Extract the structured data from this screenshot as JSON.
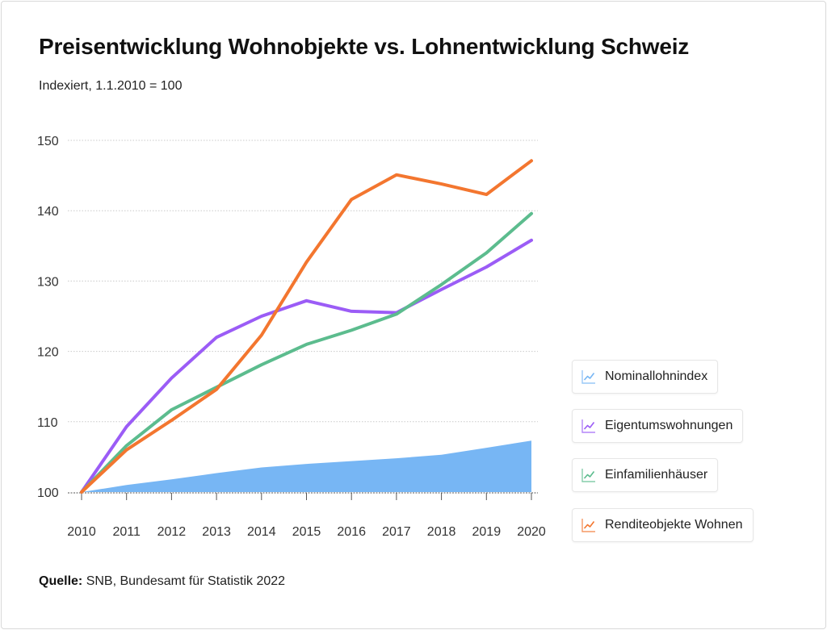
{
  "title": "Preisentwicklung Wohnobjekte vs. Lohnentwicklung Schweiz",
  "subtitle": "Indexiert, 1.1.2010 = 100",
  "source": {
    "label": "Quelle:",
    "text": "SNB, Bundesamt für Statistik 2022"
  },
  "legend": [
    {
      "label": "Nominallohnindex",
      "icon": "line-chart-icon",
      "color": "#77b6f4"
    },
    {
      "label": "Eigentumswohnungen",
      "icon": "line-chart-icon",
      "color": "#9b5cf6"
    },
    {
      "label": "Einfamilienhäuser",
      "icon": "line-chart-icon",
      "color": "#5cbc8e"
    },
    {
      "label": "Renditeobjekte Wohnen",
      "icon": "line-chart-icon",
      "color": "#f3762f"
    }
  ],
  "chart_data": {
    "type": "line",
    "x": [
      "2010",
      "2011",
      "2012",
      "2013",
      "2014",
      "2015",
      "2016",
      "2017",
      "2018",
      "2019",
      "2020"
    ],
    "ylim": [
      100,
      150
    ],
    "yticks": [
      100,
      110,
      120,
      130,
      140,
      150
    ],
    "grid": true,
    "legend_position": "right",
    "series": [
      {
        "name": "Nominallohnindex",
        "style": "area",
        "color": "#77b6f4",
        "values": [
          100,
          101,
          101.8,
          102.7,
          103.5,
          104,
          104.4,
          104.8,
          105.3,
          106.3,
          107.3
        ]
      },
      {
        "name": "Eigentumswohnungen",
        "style": "line",
        "color": "#9b5cf6",
        "values": [
          100,
          109.3,
          116.2,
          122,
          125,
          127.2,
          125.7,
          125.5,
          128.8,
          132,
          135.8
        ]
      },
      {
        "name": "Einfamilienhäuser",
        "style": "line",
        "color": "#5cbc8e",
        "values": [
          100,
          106.6,
          111.7,
          114.9,
          118.1,
          121,
          123,
          125.3,
          129.5,
          134,
          139.6
        ]
      },
      {
        "name": "Renditeobjekte Wohnen",
        "style": "line",
        "color": "#f3762f",
        "values": [
          100,
          106,
          110.2,
          114.6,
          122.3,
          132.7,
          141.6,
          145.1,
          143.8,
          142.3,
          147.1
        ]
      }
    ]
  }
}
